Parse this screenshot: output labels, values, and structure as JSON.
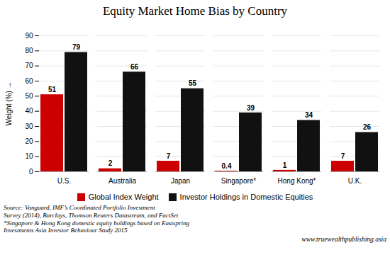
{
  "chart_data": {
    "type": "bar",
    "title": "Equity Market Home Bias by Country",
    "categories": [
      "U.S.",
      "Australia",
      "Japan",
      "Singapore*",
      "Hong Kong*",
      "U.K."
    ],
    "series": [
      {
        "name": "Global Index Weight",
        "color": "#cc0000",
        "values": [
          51,
          2,
          7,
          0.4,
          1,
          7
        ]
      },
      {
        "name": "Investor Holdings in Domestic Equities",
        "color": "#111111",
        "values": [
          79,
          66,
          55,
          39,
          34,
          26
        ]
      }
    ],
    "ylabel": "Weight (%)",
    "ylim": [
      0,
      90
    ],
    "yticks": [
      0,
      10,
      20,
      30,
      40,
      50,
      60,
      70,
      80,
      90
    ],
    "grid": true,
    "data_labels": true,
    "legend": "bottom",
    "annotations": [
      "Source: Vanguard, IMF’s Coordinated Portfolio Investment\nSurvey (2014), Barclays, Thomson Reuters Datastream, and FactSet\n*Singapore & Hong Kong domestic equity holdings based on Eastspring\nInvestments Asia Investor Behaviour Study 2015",
      "www.truewealthpublishing.asia"
    ]
  }
}
